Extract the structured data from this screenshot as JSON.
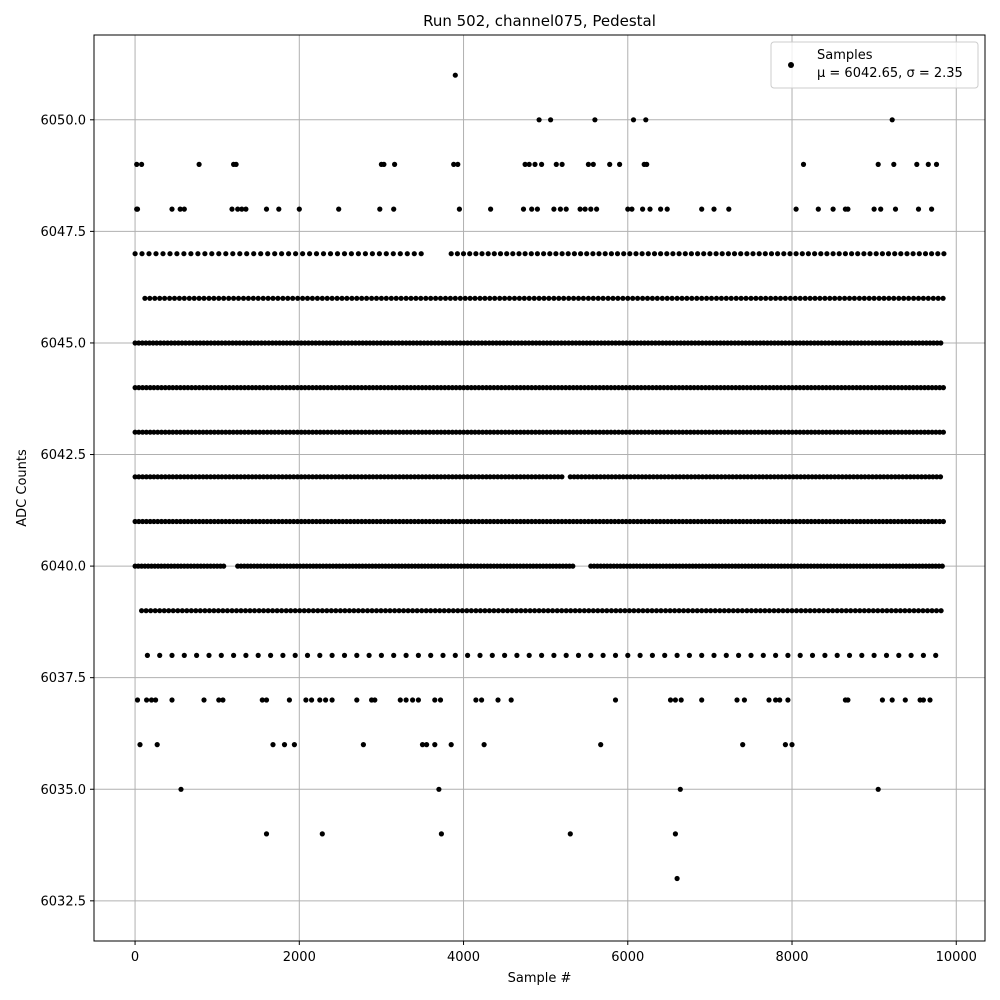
{
  "chart_data": {
    "type": "scatter",
    "title": "Run 502, channel075, Pedestal",
    "xlabel": "Sample #",
    "ylabel": "ADC Counts",
    "xlim": [
      -500,
      10350
    ],
    "ylim": [
      6031.6,
      6051.9
    ],
    "xticks": [
      0,
      2000,
      4000,
      6000,
      8000,
      10000
    ],
    "xtick_labels": [
      "0",
      "2000",
      "4000",
      "6000",
      "8000",
      "10000"
    ],
    "yticks": [
      6032.5,
      6035.0,
      6037.5,
      6040.0,
      6042.5,
      6045.0,
      6047.5,
      6050.0
    ],
    "ytick_labels": [
      "6032.5",
      "6035.0",
      "6037.5",
      "6040.0",
      "6042.5",
      "6045.0",
      "6047.5",
      "6050.0"
    ],
    "grid": true,
    "legend": {
      "placement": "top-right",
      "label": "Samples",
      "stats": "μ = 6042.65, σ = 2.35"
    },
    "marker_color": "#000000",
    "series": [
      {
        "name": "Samples",
        "rows": [
          {
            "y": 6041,
            "segments": [
              [
                0,
                9850,
                46
              ]
            ]
          },
          {
            "y": 6042,
            "segments": [
              [
                0,
                5200,
                46
              ],
              [
                5300,
                9850,
                46
              ]
            ]
          },
          {
            "y": 6043,
            "segments": [
              [
                0,
                9850,
                46
              ]
            ]
          },
          {
            "y": 6044,
            "segments": [
              [
                0,
                9850,
                46
              ]
            ]
          },
          {
            "y": 6045,
            "segments": [
              [
                0,
                9850,
                44
              ]
            ]
          },
          {
            "y": 6040,
            "segments": [
              [
                0,
                1100,
                40
              ],
              [
                1250,
                5350,
                40
              ],
              [
                5550,
                9850,
                40
              ]
            ]
          },
          {
            "y": 6046,
            "segments": [
              [
                120,
                9850,
                60
              ]
            ]
          },
          {
            "y": 6039,
            "segments": [
              [
                80,
                9850,
                55
              ]
            ]
          },
          {
            "y": 6047,
            "segments": [
              [
                0,
                3550,
                85
              ],
              [
                3850,
                9850,
                75
              ]
            ]
          },
          {
            "y": 6038,
            "segments": [
              [
                150,
                9850,
                150
              ]
            ]
          }
        ],
        "points": [
          [
            20,
            6048
          ],
          [
            30,
            6048
          ],
          [
            20,
            6049
          ],
          [
            80,
            6049
          ],
          [
            450,
            6048
          ],
          [
            550,
            6048
          ],
          [
            600,
            6048
          ],
          [
            780,
            6049
          ],
          [
            1180,
            6048
          ],
          [
            1200,
            6049
          ],
          [
            1230,
            6049
          ],
          [
            1250,
            6048
          ],
          [
            1300,
            6048
          ],
          [
            1350,
            6048
          ],
          [
            1600,
            6048
          ],
          [
            1750,
            6048
          ],
          [
            2000,
            6048
          ],
          [
            2480,
            6048
          ],
          [
            2980,
            6048
          ],
          [
            3000,
            6049
          ],
          [
            3030,
            6049
          ],
          [
            3150,
            6048
          ],
          [
            3160,
            6049
          ],
          [
            3880,
            6049
          ],
          [
            3930,
            6049
          ],
          [
            3950,
            6048
          ],
          [
            3900,
            6051
          ],
          [
            4330,
            6048
          ],
          [
            4730,
            6048
          ],
          [
            4750,
            6049
          ],
          [
            4800,
            6049
          ],
          [
            4830,
            6048
          ],
          [
            4870,
            6049
          ],
          [
            4900,
            6048
          ],
          [
            4950,
            6049
          ],
          [
            4920,
            6050
          ],
          [
            5060,
            6050
          ],
          [
            5100,
            6048
          ],
          [
            5130,
            6049
          ],
          [
            5180,
            6048
          ],
          [
            5200,
            6049
          ],
          [
            5250,
            6048
          ],
          [
            5420,
            6048
          ],
          [
            5480,
            6048
          ],
          [
            5520,
            6049
          ],
          [
            5550,
            6048
          ],
          [
            5580,
            6049
          ],
          [
            5600,
            6050
          ],
          [
            5620,
            6048
          ],
          [
            5780,
            6049
          ],
          [
            5900,
            6049
          ],
          [
            6000,
            6048
          ],
          [
            6050,
            6048
          ],
          [
            6070,
            6050
          ],
          [
            6180,
            6048
          ],
          [
            6200,
            6049
          ],
          [
            6220,
            6050
          ],
          [
            6230,
            6049
          ],
          [
            6270,
            6048
          ],
          [
            6400,
            6048
          ],
          [
            6480,
            6048
          ],
          [
            6900,
            6048
          ],
          [
            7050,
            6048
          ],
          [
            7230,
            6048
          ],
          [
            8050,
            6048
          ],
          [
            8140,
            6049
          ],
          [
            8320,
            6048
          ],
          [
            8500,
            6048
          ],
          [
            8650,
            6048
          ],
          [
            8680,
            6048
          ],
          [
            9000,
            6048
          ],
          [
            9050,
            6049
          ],
          [
            9080,
            6048
          ],
          [
            9220,
            6050
          ],
          [
            9240,
            6049
          ],
          [
            9260,
            6048
          ],
          [
            9520,
            6049
          ],
          [
            9540,
            6048
          ],
          [
            9660,
            6049
          ],
          [
            9700,
            6048
          ],
          [
            9760,
            6049
          ],
          [
            30,
            6037
          ],
          [
            140,
            6037
          ],
          [
            200,
            6037
          ],
          [
            250,
            6037
          ],
          [
            450,
            6037
          ],
          [
            840,
            6037
          ],
          [
            1020,
            6037
          ],
          [
            1070,
            6037
          ],
          [
            1550,
            6037
          ],
          [
            1600,
            6037
          ],
          [
            1880,
            6037
          ],
          [
            2080,
            6037
          ],
          [
            2150,
            6037
          ],
          [
            2250,
            6037
          ],
          [
            2320,
            6037
          ],
          [
            2400,
            6037
          ],
          [
            2700,
            6037
          ],
          [
            2880,
            6037
          ],
          [
            2920,
            6037
          ],
          [
            3230,
            6037
          ],
          [
            3300,
            6037
          ],
          [
            3380,
            6037
          ],
          [
            3450,
            6037
          ],
          [
            3650,
            6037
          ],
          [
            3720,
            6037
          ],
          [
            4150,
            6037
          ],
          [
            4220,
            6037
          ],
          [
            4420,
            6037
          ],
          [
            4580,
            6037
          ],
          [
            5850,
            6037
          ],
          [
            6520,
            6037
          ],
          [
            6580,
            6037
          ],
          [
            6650,
            6037
          ],
          [
            6900,
            6037
          ],
          [
            7330,
            6037
          ],
          [
            7420,
            6037
          ],
          [
            7720,
            6037
          ],
          [
            7800,
            6037
          ],
          [
            7850,
            6037
          ],
          [
            7950,
            6037
          ],
          [
            8650,
            6037
          ],
          [
            8680,
            6037
          ],
          [
            9100,
            6037
          ],
          [
            9220,
            6037
          ],
          [
            9380,
            6037
          ],
          [
            9560,
            6037
          ],
          [
            9600,
            6037
          ],
          [
            9680,
            6037
          ],
          [
            60,
            6036
          ],
          [
            270,
            6036
          ],
          [
            1680,
            6036
          ],
          [
            1820,
            6036
          ],
          [
            1940,
            6036
          ],
          [
            2780,
            6036
          ],
          [
            3500,
            6036
          ],
          [
            3550,
            6036
          ],
          [
            3650,
            6036
          ],
          [
            3850,
            6036
          ],
          [
            4250,
            6036
          ],
          [
            5670,
            6036
          ],
          [
            7400,
            6036
          ],
          [
            7920,
            6036
          ],
          [
            8000,
            6036
          ],
          [
            560,
            6035
          ],
          [
            3700,
            6035
          ],
          [
            6640,
            6035
          ],
          [
            9050,
            6035
          ],
          [
            1600,
            6034
          ],
          [
            2280,
            6034
          ],
          [
            3730,
            6034
          ],
          [
            5300,
            6034
          ],
          [
            6580,
            6034
          ],
          [
            6600,
            6033
          ]
        ]
      }
    ]
  }
}
